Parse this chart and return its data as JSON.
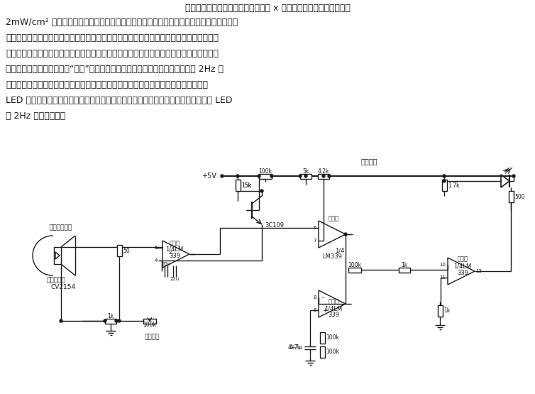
{
  "bg_color": "#ffffff",
  "line_color": "#1a1a1a",
  "text_color": "#1a1a1a",
  "title_line": "单片雷达波检测器电路。一个简单的 x 带雷达检波器能指示强度低达",
  "body_lines": [
    "2mW/cm² 的射频辐射的强度变化。当有雷达波辐射到检波二极管上时，在放大器部分的输",
    "入端就出现一个相应的电压。该放大器的增益可调，以便改变整个电路报警时输入信号所在",
    "的范围。放大器的输出驱动一个电压比较器。该比较器具有一个可变的、为防止误报警而设",
    "定的阈值。比较器输出连成“线或”结构，而振荡器部分的集电极开路输出端输出 2Hz 的",
    "信号频率。没有雷达波信号时，比较器输出低电平，振荡器的输出无法驱动缓冲器，故",
    "LED 熄灭。有雷达波信号时，比较器的输出变为高电平，使振荡信号通过缓冲器驱动 LED",
    "以 2Hz 的频率闪烁。"
  ],
  "vcc_label": "+5V",
  "threshold_label": "阈值调节",
  "horn_label": "喇叭形接收器",
  "det_label1": "晶体检波器",
  "det_label2": "CV2154",
  "amp_label1": "放大器",
  "amp_label2": "1/4LM",
  "amp_label3": "339",
  "comp_label1": "比较器",
  "comp_label2": "1/4",
  "comp_label3": "LM339",
  "osc_label1": "振荡器",
  "osc_label2": "1/4LM",
  "osc_label3": "339",
  "buf_label1": "缓冲器",
  "buf_label2": "1/4LM",
  "buf_label3": "339",
  "adj_label": "调节范围"
}
